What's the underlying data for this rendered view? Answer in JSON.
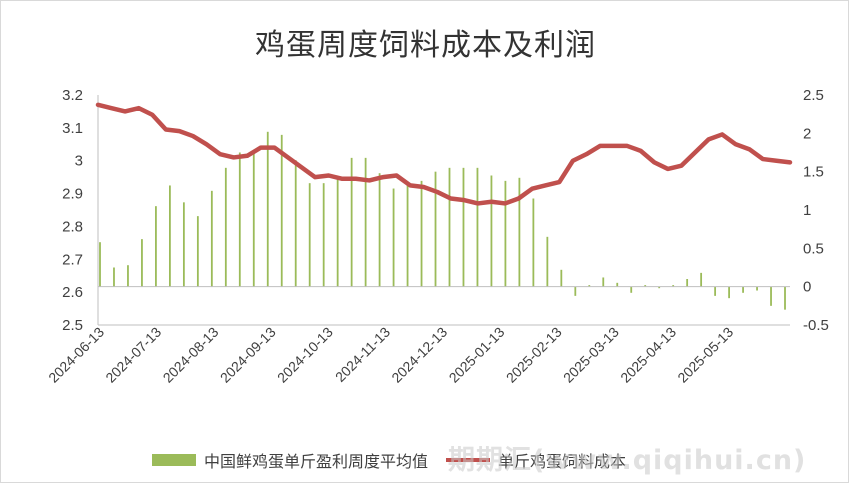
{
  "chart_data": {
    "type": "bar+line",
    "title": "鸡蛋周度饲料成本及利润",
    "left_axis": {
      "min": 2.5,
      "max": 3.2,
      "ticks": [
        "3.2",
        "3.1",
        "3",
        "2.9",
        "2.8",
        "2.7",
        "2.6",
        "2.5"
      ]
    },
    "right_axis": {
      "min": -0.5,
      "max": 2.5,
      "ticks": [
        "2.5",
        "2",
        "1.5",
        "1",
        "0.5",
        "0",
        "-0.5"
      ]
    },
    "x_tick_labels": [
      "2024-06-13",
      "2024-07-13",
      "2024-08-13",
      "2024-09-13",
      "2024-10-13",
      "2024-11-13",
      "2024-12-13",
      "2025-01-13",
      "2025-02-13",
      "2025-03-13",
      "2025-04-13",
      "2025-05-13"
    ],
    "series": [
      {
        "name": "中国鲜鸡蛋单斤盈利周度平均值",
        "axis": "right",
        "kind": "bar",
        "color": "#9bbb59",
        "values": [
          0.58,
          0.25,
          0.28,
          0.62,
          1.05,
          1.32,
          1.1,
          0.92,
          1.25,
          1.55,
          1.75,
          1.75,
          2.02,
          1.98,
          1.65,
          1.35,
          1.35,
          1.42,
          1.68,
          1.68,
          1.48,
          1.28,
          1.32,
          1.38,
          1.5,
          1.55,
          1.55,
          1.55,
          1.45,
          1.38,
          1.42,
          1.15,
          0.65,
          0.22,
          -0.12,
          0.02,
          0.12,
          0.05,
          -0.08,
          0.02,
          -0.02,
          0.02,
          0.1,
          0.18,
          -0.12,
          -0.15,
          -0.08,
          -0.05,
          -0.25,
          -0.3
        ]
      },
      {
        "name": "单斤鸡蛋饲料成本",
        "axis": "left",
        "kind": "line",
        "color": "#c0504d",
        "values": [
          3.17,
          3.16,
          3.15,
          3.16,
          3.14,
          3.095,
          3.09,
          3.075,
          3.05,
          3.02,
          3.01,
          3.015,
          3.04,
          3.04,
          3.01,
          2.98,
          2.95,
          2.955,
          2.945,
          2.945,
          2.94,
          2.95,
          2.955,
          2.925,
          2.92,
          2.905,
          2.885,
          2.88,
          2.87,
          2.875,
          2.87,
          2.885,
          2.915,
          2.925,
          2.935,
          3.0,
          3.02,
          3.045,
          3.045,
          3.045,
          3.03,
          2.995,
          2.975,
          2.985,
          3.025,
          3.065,
          3.08,
          3.05,
          3.035,
          3.005,
          3.0,
          2.995
        ]
      }
    ],
    "legend_position": "bottom",
    "grid": false
  },
  "watermark": "期期汇(www.qiqihui.cn)"
}
